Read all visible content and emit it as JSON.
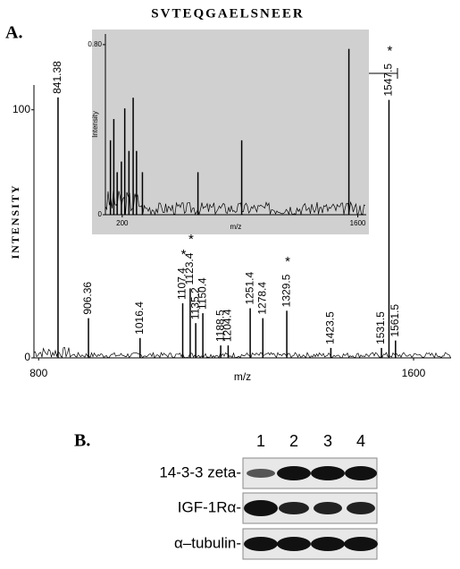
{
  "panel_a": {
    "label": "A.",
    "title": "SVTEQGAELSNEER"
  },
  "chart_data": [
    {
      "type": "stem",
      "xlabel": "m/z",
      "ylabel": "INTENSITY",
      "xlim": [
        790,
        1680
      ],
      "ylim": [
        0,
        110
      ],
      "xticks": [
        800,
        1600
      ],
      "yticks": [
        0,
        100
      ],
      "color": "#000000",
      "star_label": "*",
      "x": [
        841.38,
        906.36,
        1016.4,
        1107.4,
        1123.4,
        1135.2,
        1150.4,
        1188.5,
        1204.4,
        1251.4,
        1278.4,
        1329.5,
        1423.5,
        1531.5,
        1547.5,
        1561.5
      ],
      "values": [
        105,
        16,
        8,
        22,
        28,
        14,
        18,
        5,
        5,
        20,
        16,
        19,
        4,
        4,
        104,
        7
      ],
      "starred": [
        false,
        false,
        false,
        true,
        true,
        false,
        false,
        false,
        false,
        false,
        false,
        true,
        false,
        false,
        true,
        false
      ]
    },
    {
      "type": "stem",
      "xlabel": "m/z",
      "ylabel": "Intensity",
      "xlim": [
        100,
        1650
      ],
      "ylim": [
        0,
        0.85
      ],
      "xticks": [
        200,
        1600
      ],
      "yticks": [
        0,
        {
          "value": 0.8,
          "label": "0.80"
        }
      ],
      "color": "#000000",
      "background": "#d0d0d0",
      "x": [
        130,
        150,
        170,
        195,
        215,
        240,
        265,
        285,
        320,
        650,
        910,
        1547
      ],
      "values": [
        0.35,
        0.45,
        0.2,
        0.25,
        0.5,
        0.3,
        0.55,
        0.3,
        0.2,
        0.2,
        0.35,
        0.78
      ]
    }
  ],
  "panel_b": {
    "label": "B.",
    "lanes": [
      "1",
      "2",
      "3",
      "4"
    ],
    "rows": [
      "14-3-3 zeta-",
      "IGF-1Rα-",
      "α–tubulin-"
    ]
  }
}
